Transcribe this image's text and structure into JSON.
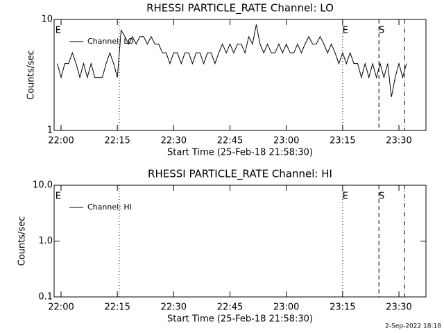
{
  "chart_data": [
    {
      "type": "line",
      "title": "RHESSI PARTICLE_RATE Channel: LO",
      "xlabel": "Start Time (25-Feb-18 21:58:30)",
      "ylabel": "Counts/sec",
      "log_y": true,
      "ylim": [
        1,
        10
      ],
      "yticks": [
        1,
        10
      ],
      "legend": "upper left",
      "xlim": [
        "21:58:09",
        "23:37:12"
      ],
      "xticks": [
        "22:00",
        "22:15",
        "22:30",
        "22:45",
        "23:00",
        "23:15",
        "23:30"
      ],
      "markers": [
        {
          "x": "21:58:30",
          "label": "E"
        },
        {
          "x": "22:15:30",
          "style": "dotted"
        },
        {
          "x": "23:15",
          "label": "E",
          "style": "dotted"
        },
        {
          "x": "23:24:40",
          "label": "S",
          "style": "dashed"
        },
        {
          "x": "23:31:30",
          "style": "dashdot"
        }
      ],
      "x": [
        "21:59",
        "22:00",
        "22:01",
        "22:02",
        "22:03",
        "22:04",
        "22:05",
        "22:06",
        "22:07",
        "22:08",
        "22:09",
        "22:10",
        "22:11",
        "22:12",
        "22:13",
        "22:14",
        "22:15",
        "22:16",
        "22:17",
        "22:18",
        "22:19",
        "22:20",
        "22:21",
        "22:22",
        "22:23",
        "22:24",
        "22:25",
        "22:26",
        "22:27",
        "22:28",
        "22:29",
        "22:30",
        "22:31",
        "22:32",
        "22:33",
        "22:34",
        "22:35",
        "22:36",
        "22:37",
        "22:38",
        "22:39",
        "22:40",
        "22:41",
        "22:42",
        "22:43",
        "22:44",
        "22:45",
        "22:46",
        "22:47",
        "22:48",
        "22:49",
        "22:50",
        "22:51",
        "22:52",
        "22:53",
        "22:54",
        "22:55",
        "22:56",
        "22:57",
        "22:58",
        "22:59",
        "23:00",
        "23:01",
        "23:02",
        "23:03",
        "23:04",
        "23:05",
        "23:06",
        "23:07",
        "23:08",
        "23:09",
        "23:10",
        "23:11",
        "23:12",
        "23:13",
        "23:14",
        "23:15",
        "23:16",
        "23:17",
        "23:18",
        "23:19",
        "23:20",
        "23:21",
        "23:22",
        "23:23",
        "23:24",
        "23:25",
        "23:26",
        "23:27",
        "23:28",
        "23:29",
        "23:30",
        "23:31",
        "23:32"
      ],
      "series": [
        {
          "name": "Channel: LO",
          "color": "#000000",
          "values": [
            4,
            3,
            4,
            4,
            5,
            4,
            3,
            4,
            3,
            4,
            3,
            3,
            3,
            4,
            5,
            4,
            3,
            8,
            7,
            6,
            7,
            6,
            7,
            7,
            6,
            7,
            6,
            6,
            5,
            5,
            4,
            5,
            5,
            4,
            5,
            5,
            4,
            5,
            5,
            4,
            5,
            5,
            4,
            5,
            6,
            5,
            6,
            5,
            6,
            6,
            5,
            7,
            6,
            9,
            6,
            5,
            6,
            5,
            5,
            6,
            5,
            6,
            5,
            5,
            6,
            5,
            6,
            7,
            6,
            6,
            7,
            6,
            5,
            6,
            5,
            4,
            5,
            4,
            5,
            4,
            4,
            3,
            4,
            3,
            4,
            3,
            4,
            3,
            4,
            2,
            3,
            4,
            3,
            4
          ]
        }
      ]
    },
    {
      "type": "line",
      "title": "RHESSI PARTICLE_RATE Channel: HI",
      "xlabel": "Start Time (25-Feb-18 21:58:30)",
      "ylabel": "Counts/sec",
      "log_y": true,
      "ylim": [
        0.1,
        10
      ],
      "yticks": [
        0.1,
        {
          "value": 1,
          "label": "1.0"
        },
        {
          "value": 10,
          "label": "10.0"
        }
      ],
      "legend": "upper left",
      "xlim": [
        "21:58:09",
        "23:37:12"
      ],
      "xticks": [
        "22:00",
        "22:15",
        "22:30",
        "22:45",
        "23:00",
        "23:15",
        "23:30"
      ],
      "markers": [
        {
          "x": "21:58:30",
          "label": "E"
        },
        {
          "x": "22:15:30",
          "style": "dotted"
        },
        {
          "x": "23:15",
          "label": "E",
          "style": "dotted"
        },
        {
          "x": "23:24:40",
          "label": "S",
          "style": "dashed"
        },
        {
          "x": "23:31:30",
          "style": "dashdot"
        }
      ],
      "x": [],
      "series": [
        {
          "name": "Channel: HI",
          "color": "#000000",
          "values": []
        }
      ]
    }
  ],
  "timestamp": "2-Sep-2022 18:18"
}
